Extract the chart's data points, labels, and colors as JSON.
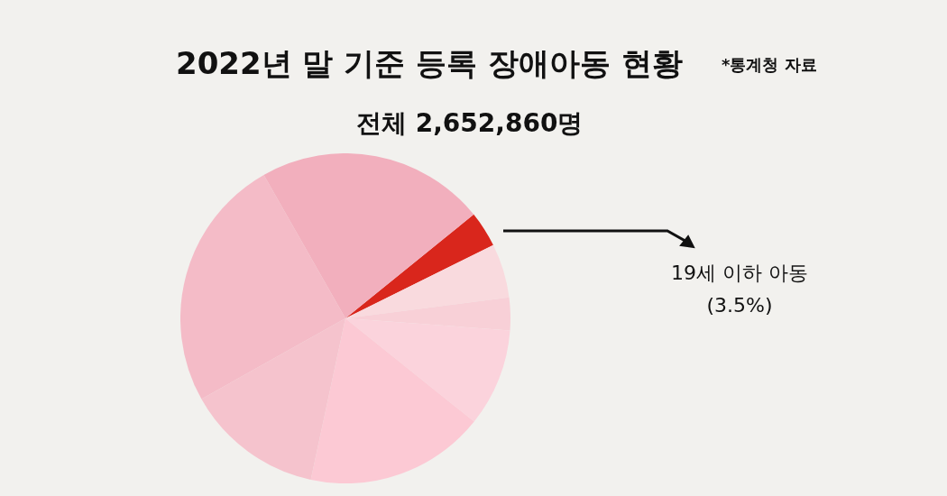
{
  "chart_data": {
    "type": "pie",
    "title": "2022년 말 기준 등록 장애아동 현황",
    "subtitle": "전체 2,652,860명",
    "annotations": [
      "*통계청 자료"
    ],
    "categories": [
      "19세 이하 아동",
      null,
      null,
      null,
      null,
      null,
      null,
      null
    ],
    "values": [
      3.5,
      5.3,
      3.2,
      9.6,
      17.6,
      13.5,
      24.9,
      22.4
    ],
    "value_labels": [
      "(3.5%)",
      null,
      null,
      null,
      null,
      null,
      null,
      null
    ],
    "colors": [
      "#d9261c",
      "#f9dade",
      "#f8d0d7",
      "#fbd3dc",
      "#fcc9d4",
      "#f5c3cd",
      "#f4bbc7",
      "#f2afbd"
    ],
    "legend": false
  }
}
